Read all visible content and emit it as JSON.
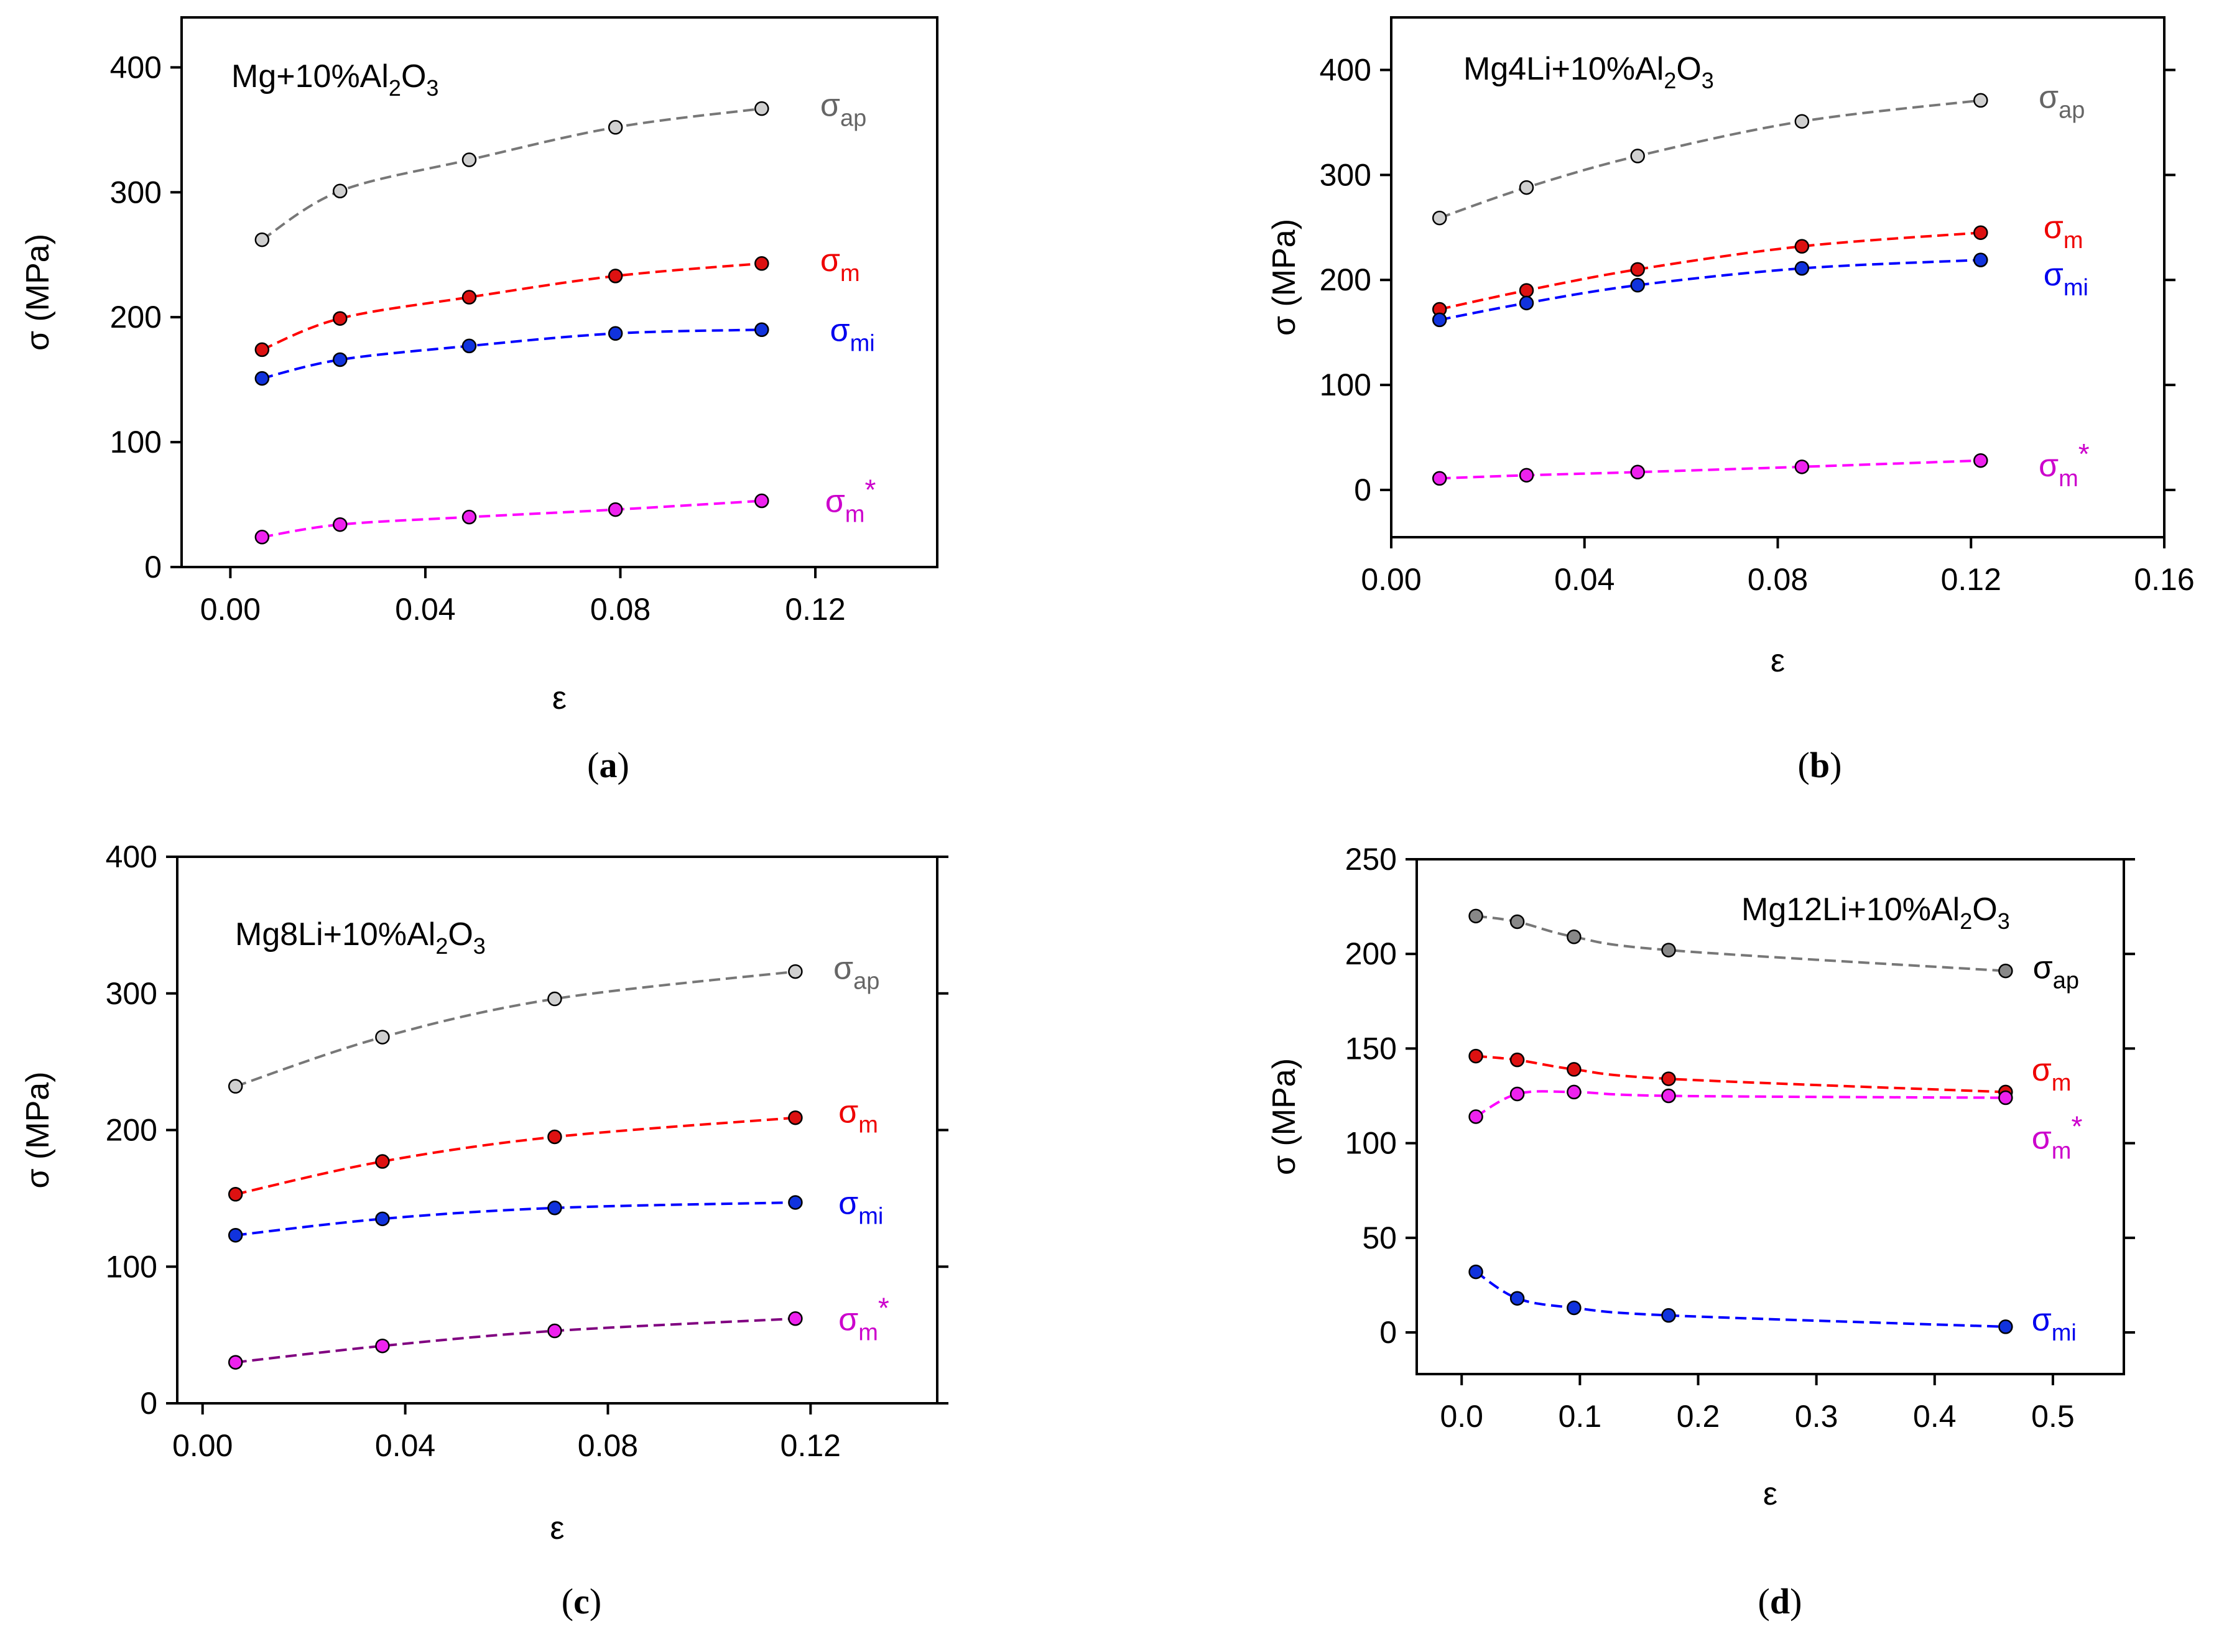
{
  "chart_data": [
    {
      "type": "line",
      "panel_label": "a",
      "title": "Mg+10%Al2O3",
      "title_parts": [
        "Mg+10%Al",
        "2",
        "O",
        "3"
      ],
      "xlabel": "ε",
      "ylabel": "σ (MPa)",
      "xlim": [
        -0.01,
        0.145
      ],
      "ylim": [
        0,
        440
      ],
      "xticks": [
        0.0,
        0.04,
        0.08,
        0.12
      ],
      "xtick_labels": [
        "0.00",
        "0.04",
        "0.08",
        "0.12"
      ],
      "yticks": [
        0,
        100,
        200,
        300,
        400
      ],
      "ytick_labels": [
        "0",
        "100",
        "200",
        "300",
        "400"
      ],
      "series": [
        {
          "name": "σap",
          "symbol": "σ",
          "sub": "ap",
          "sup": "",
          "line_color": "#777777",
          "marker_color": "#d0d0d0",
          "label_color": "#666666",
          "x": [
            0.0065,
            0.0225,
            0.049,
            0.079,
            0.109
          ],
          "values": [
            262,
            301,
            326,
            352,
            367
          ],
          "label_anchor": [
            0.121,
            367
          ]
        },
        {
          "name": "σm",
          "symbol": "σ",
          "sub": "m",
          "sup": "",
          "line_color": "#ff0000",
          "marker_color": "#dd1111",
          "label_color": "#ee0000",
          "x": [
            0.0065,
            0.0225,
            0.049,
            0.079,
            0.109
          ],
          "values": [
            174,
            199,
            216,
            233,
            243
          ],
          "label_anchor": [
            0.121,
            243
          ]
        },
        {
          "name": "σmi",
          "symbol": "σ",
          "sub": "mi",
          "sup": "",
          "line_color": "#0000ff",
          "marker_color": "#1133dd",
          "label_color": "#0000ee",
          "x": [
            0.0065,
            0.0225,
            0.049,
            0.079,
            0.109
          ],
          "values": [
            151,
            166,
            177,
            187,
            190
          ],
          "label_anchor": [
            0.123,
            187
          ]
        },
        {
          "name": "σm*",
          "symbol": "σ",
          "sub": "m",
          "sup": "*",
          "line_color": "#ff00ff",
          "marker_color": "#ee22ee",
          "label_color": "#cc00cc",
          "x": [
            0.0065,
            0.0225,
            0.049,
            0.079,
            0.109
          ],
          "values": [
            24,
            34,
            40,
            46,
            53
          ],
          "label_anchor": [
            0.122,
            50
          ]
        }
      ]
    },
    {
      "type": "line",
      "panel_label": "b",
      "title": "Mg4Li+10%Al2O3",
      "title_parts": [
        "Mg4Li+10%Al",
        "2",
        "O",
        "3"
      ],
      "xlabel": "ε",
      "ylabel": "σ (MPa)",
      "xlim": [
        0.0,
        0.16
      ],
      "ylim": [
        -45,
        450
      ],
      "xticks": [
        0.0,
        0.04,
        0.08,
        0.12,
        0.16
      ],
      "xtick_labels": [
        "0.00",
        "0.04",
        "0.08",
        "0.12",
        "0.16"
      ],
      "yticks": [
        0,
        100,
        200,
        300,
        400
      ],
      "ytick_labels": [
        "0",
        "100",
        "200",
        "300",
        "400"
      ],
      "series": [
        {
          "name": "σap",
          "symbol": "σ",
          "sub": "ap",
          "sup": "",
          "line_color": "#777777",
          "marker_color": "#d0d0d0",
          "label_color": "#666666",
          "x": [
            0.01,
            0.028,
            0.051,
            0.085,
            0.122
          ],
          "values": [
            259,
            288,
            318,
            351,
            371
          ],
          "label_anchor": [
            0.134,
            371
          ]
        },
        {
          "name": "σm",
          "symbol": "σ",
          "sub": "m",
          "sup": "",
          "line_color": "#ff0000",
          "marker_color": "#dd1111",
          "label_color": "#ee0000",
          "x": [
            0.01,
            0.028,
            0.051,
            0.085,
            0.122
          ],
          "values": [
            172,
            190,
            210,
            232,
            245
          ],
          "label_anchor": [
            0.135,
            247
          ]
        },
        {
          "name": "σmi",
          "symbol": "σ",
          "sub": "mi",
          "sup": "",
          "line_color": "#0000ff",
          "marker_color": "#1133dd",
          "label_color": "#0000ee",
          "x": [
            0.01,
            0.028,
            0.051,
            0.085,
            0.122
          ],
          "values": [
            162,
            178,
            195,
            211,
            219
          ],
          "label_anchor": [
            0.135,
            202
          ]
        },
        {
          "name": "σm*",
          "symbol": "σ",
          "sub": "m",
          "sup": "*",
          "line_color": "#ff00ff",
          "marker_color": "#ee22ee",
          "label_color": "#cc00cc",
          "x": [
            0.01,
            0.028,
            0.051,
            0.085,
            0.122
          ],
          "values": [
            11,
            14,
            17,
            22,
            28
          ],
          "label_anchor": [
            0.134,
            20
          ]
        }
      ]
    },
    {
      "type": "line",
      "panel_label": "c",
      "title": "Mg8Li+10%Al2O3",
      "title_parts": [
        "Mg8Li+10%Al",
        "2",
        "O",
        "3"
      ],
      "xlabel": "ε",
      "ylabel": "σ (MPa)",
      "xlim": [
        -0.005,
        0.145
      ],
      "ylim": [
        0,
        400
      ],
      "xticks": [
        0.0,
        0.04,
        0.08,
        0.12
      ],
      "xtick_labels": [
        "0.00",
        "0.04",
        "0.08",
        "0.12"
      ],
      "yticks": [
        0,
        100,
        200,
        300,
        400
      ],
      "ytick_labels": [
        "0",
        "100",
        "200",
        "300",
        "400"
      ],
      "series": [
        {
          "name": "σap",
          "symbol": "σ",
          "sub": "ap",
          "sup": "",
          "line_color": "#777777",
          "marker_color": "#d0d0d0",
          "label_color": "#666666",
          "x": [
            0.0065,
            0.0355,
            0.0695,
            0.117
          ],
          "values": [
            232,
            268,
            296,
            316
          ],
          "label_anchor": [
            0.1245,
            316
          ]
        },
        {
          "name": "σm",
          "symbol": "σ",
          "sub": "m",
          "sup": "",
          "line_color": "#ff0000",
          "marker_color": "#dd1111",
          "label_color": "#ee0000",
          "x": [
            0.0065,
            0.0355,
            0.0695,
            0.117
          ],
          "values": [
            153,
            177,
            195,
            209
          ],
          "label_anchor": [
            0.1255,
            211
          ]
        },
        {
          "name": "σmi",
          "symbol": "σ",
          "sub": "mi",
          "sup": "",
          "line_color": "#0000ff",
          "marker_color": "#1133dd",
          "label_color": "#0000ee",
          "x": [
            0.0065,
            0.0355,
            0.0695,
            0.117
          ],
          "values": [
            123,
            135,
            143,
            147
          ],
          "label_anchor": [
            0.1255,
            144
          ]
        },
        {
          "name": "σm*",
          "symbol": "σ",
          "sub": "m",
          "sup": "*",
          "line_color": "#800080",
          "marker_color": "#ee22ee",
          "label_color": "#cc00cc",
          "x": [
            0.0065,
            0.0355,
            0.0695,
            0.117
          ],
          "values": [
            30,
            42,
            53,
            62
          ],
          "label_anchor": [
            0.1255,
            59
          ]
        }
      ]
    },
    {
      "type": "line",
      "panel_label": "d",
      "title": "Mg12Li+10%Al2O3",
      "title_parts": [
        "Mg12Li+10%Al",
        "2",
        "O",
        "3"
      ],
      "xlabel": "ε",
      "ylabel": "σ (MPa)",
      "xlim": [
        -0.038,
        0.56
      ],
      "ylim": [
        -22,
        250
      ],
      "xticks": [
        0.0,
        0.1,
        0.2,
        0.3,
        0.4,
        0.5
      ],
      "xtick_labels": [
        "0.0",
        "0.1",
        "0.2",
        "0.3",
        "0.4",
        "0.5"
      ],
      "yticks": [
        0,
        50,
        100,
        150,
        200,
        250
      ],
      "ytick_labels": [
        "0",
        "50",
        "100",
        "150",
        "200",
        "250"
      ],
      "series": [
        {
          "name": "σap",
          "symbol": "σ",
          "sub": "ap",
          "sup": "",
          "line_color": "#777777",
          "marker_color": "#888888",
          "label_color": "#000000",
          "x": [
            0.012,
            0.047,
            0.095,
            0.175,
            0.46
          ],
          "values": [
            220,
            217,
            209,
            202,
            191
          ],
          "label_anchor": [
            0.483,
            191
          ]
        },
        {
          "name": "σm",
          "symbol": "σ",
          "sub": "m",
          "sup": "",
          "line_color": "#ff0000",
          "marker_color": "#dd1111",
          "label_color": "#ee0000",
          "x": [
            0.012,
            0.047,
            0.095,
            0.175,
            0.46
          ],
          "values": [
            146,
            144,
            139,
            134,
            127
          ],
          "label_anchor": [
            0.482,
            137
          ]
        },
        {
          "name": "σm*",
          "symbol": "σ",
          "sub": "m",
          "sup": "*",
          "line_color": "#ff00ff",
          "marker_color": "#ee22ee",
          "label_color": "#cc00cc",
          "x": [
            0.012,
            0.047,
            0.095,
            0.175,
            0.46
          ],
          "values": [
            114,
            126,
            127,
            125,
            124
          ],
          "label_anchor": [
            0.482,
            101
          ]
        },
        {
          "name": "σmi",
          "symbol": "σ",
          "sub": "mi",
          "sup": "",
          "line_color": "#0000ff",
          "marker_color": "#1133dd",
          "label_color": "#0000ee",
          "x": [
            0.012,
            0.047,
            0.095,
            0.175,
            0.46
          ],
          "values": [
            32,
            18,
            13,
            9,
            3
          ],
          "label_anchor": [
            0.482,
            5
          ]
        }
      ]
    }
  ]
}
